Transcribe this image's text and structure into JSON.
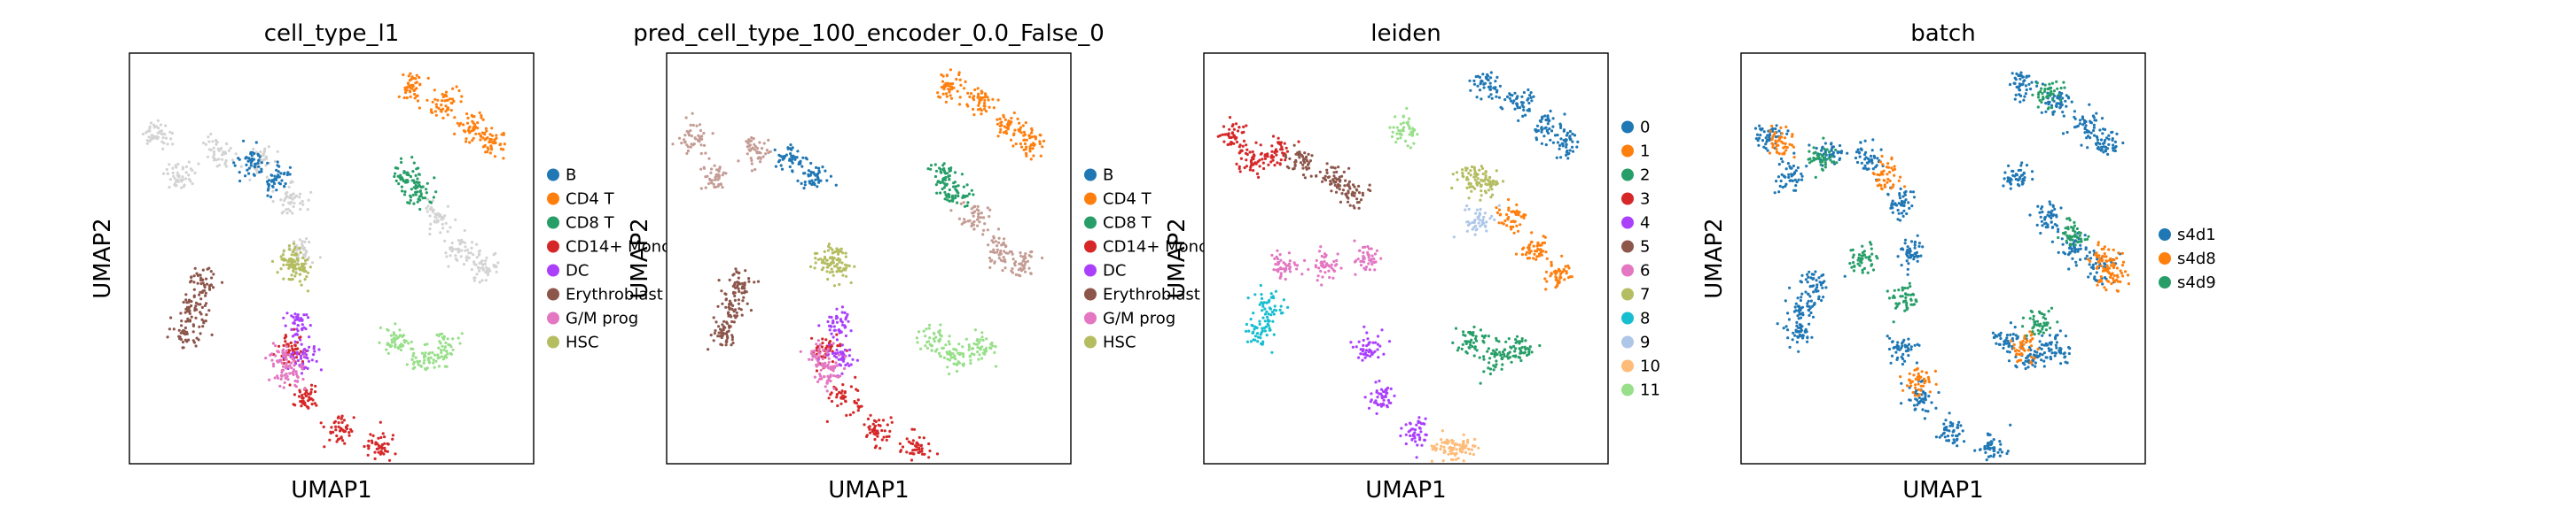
{
  "figure": {
    "background": "#ffffff"
  },
  "chart_data": [
    {
      "type": "scatter",
      "title": "cell_type_l1",
      "xlabel": "UMAP1",
      "ylabel": "UMAP2",
      "grid": false,
      "ticks": false,
      "legend": {
        "placement": "right",
        "entries": [
          {
            "label": "B",
            "color": "#1f77b4"
          },
          {
            "label": "CD4 T",
            "color": "#ff7f0e"
          },
          {
            "label": "CD8 T",
            "color": "#279e68"
          },
          {
            "label": "CD14+ Mono",
            "color": "#d62728"
          },
          {
            "label": "DC",
            "color": "#aa40fc"
          },
          {
            "label": "Erythroblast",
            "color": "#8c564b"
          },
          {
            "label": "G/M prog",
            "color": "#e377c2"
          },
          {
            "label": "HSC",
            "color": "#b5bd61"
          }
        ]
      },
      "unlabeled_color": "#d3d3d3",
      "clusters": [
        {
          "color": "#ff7f0e",
          "points": [
            [
              0.7,
              0.08
            ],
            [
              0.78,
              0.12
            ],
            [
              0.85,
              0.18
            ],
            [
              0.9,
              0.22
            ]
          ]
        },
        {
          "color": "#d3d3d3",
          "points": [
            [
              0.07,
              0.2
            ],
            [
              0.12,
              0.3
            ],
            [
              0.22,
              0.24
            ],
            [
              0.32,
              0.26
            ],
            [
              0.4,
              0.36
            ],
            [
              0.42,
              0.48
            ],
            [
              0.76,
              0.4
            ],
            [
              0.82,
              0.48
            ],
            [
              0.88,
              0.52
            ]
          ]
        },
        {
          "color": "#1f77b4",
          "points": [
            [
              0.3,
              0.26
            ],
            [
              0.36,
              0.3
            ]
          ]
        },
        {
          "color": "#279e68",
          "points": [
            [
              0.68,
              0.3
            ],
            [
              0.72,
              0.34
            ]
          ]
        },
        {
          "color": "#d62728",
          "points": [
            [
              0.4,
              0.72
            ],
            [
              0.44,
              0.84
            ],
            [
              0.52,
              0.92
            ],
            [
              0.62,
              0.96
            ]
          ]
        },
        {
          "color": "#aa40fc",
          "points": [
            [
              0.42,
              0.66
            ],
            [
              0.43,
              0.74
            ]
          ]
        },
        {
          "color": "#e377c2",
          "points": [
            [
              0.38,
              0.74
            ],
            [
              0.4,
              0.78
            ]
          ]
        },
        {
          "color": "#8c564b",
          "points": [
            [
              0.18,
              0.56
            ],
            [
              0.16,
              0.62
            ],
            [
              0.14,
              0.68
            ]
          ]
        },
        {
          "color": "#b5bd61",
          "points": [
            [
              0.4,
              0.5
            ],
            [
              0.42,
              0.52
            ]
          ]
        },
        {
          "color": "#98df8a",
          "points": [
            [
              0.66,
              0.7
            ],
            [
              0.72,
              0.74
            ],
            [
              0.78,
              0.72
            ]
          ]
        }
      ]
    },
    {
      "type": "scatter",
      "title": "pred_cell_type_100_encoder_0.0_False_0",
      "xlabel": "UMAP1",
      "ylabel": "UMAP2",
      "grid": false,
      "ticks": false,
      "legend": {
        "placement": "right",
        "entries": [
          {
            "label": "B",
            "color": "#1f77b4"
          },
          {
            "label": "CD4 T",
            "color": "#ff7f0e"
          },
          {
            "label": "CD8 T",
            "color": "#279e68"
          },
          {
            "label": "CD14+ Mono",
            "color": "#d62728"
          },
          {
            "label": "DC",
            "color": "#aa40fc"
          },
          {
            "label": "Erythroblast",
            "color": "#8c564b"
          },
          {
            "label": "G/M prog",
            "color": "#e377c2"
          },
          {
            "label": "HSC",
            "color": "#b5bd61"
          }
        ]
      },
      "clusters": [
        {
          "color": "#ff7f0e",
          "points": [
            [
              0.7,
              0.08
            ],
            [
              0.78,
              0.12
            ],
            [
              0.85,
              0.18
            ],
            [
              0.9,
              0.22
            ]
          ]
        },
        {
          "color": "#c49c94",
          "points": [
            [
              0.07,
              0.2
            ],
            [
              0.12,
              0.3
            ],
            [
              0.22,
              0.24
            ],
            [
              0.76,
              0.4
            ],
            [
              0.82,
              0.48
            ],
            [
              0.88,
              0.52
            ]
          ]
        },
        {
          "color": "#1f77b4",
          "points": [
            [
              0.3,
              0.26
            ],
            [
              0.36,
              0.3
            ]
          ]
        },
        {
          "color": "#279e68",
          "points": [
            [
              0.68,
              0.3
            ],
            [
              0.72,
              0.34
            ]
          ]
        },
        {
          "color": "#d62728",
          "points": [
            [
              0.4,
              0.72
            ],
            [
              0.44,
              0.84
            ],
            [
              0.52,
              0.92
            ],
            [
              0.62,
              0.96
            ]
          ]
        },
        {
          "color": "#aa40fc",
          "points": [
            [
              0.42,
              0.66
            ],
            [
              0.43,
              0.74
            ]
          ]
        },
        {
          "color": "#e377c2",
          "points": [
            [
              0.38,
              0.74
            ],
            [
              0.4,
              0.78
            ]
          ]
        },
        {
          "color": "#8c564b",
          "points": [
            [
              0.18,
              0.56
            ],
            [
              0.16,
              0.62
            ],
            [
              0.14,
              0.68
            ]
          ]
        },
        {
          "color": "#b5bd61",
          "points": [
            [
              0.4,
              0.5
            ],
            [
              0.42,
              0.52
            ]
          ]
        },
        {
          "color": "#98df8a",
          "points": [
            [
              0.66,
              0.7
            ],
            [
              0.72,
              0.74
            ],
            [
              0.78,
              0.72
            ]
          ]
        }
      ]
    },
    {
      "type": "scatter",
      "title": "leiden",
      "xlabel": "UMAP1",
      "ylabel": "UMAP2",
      "grid": false,
      "ticks": false,
      "legend": {
        "placement": "right",
        "entries": [
          {
            "label": "0",
            "color": "#1f77b4"
          },
          {
            "label": "1",
            "color": "#ff7f0e"
          },
          {
            "label": "2",
            "color": "#279e68"
          },
          {
            "label": "3",
            "color": "#d62728"
          },
          {
            "label": "4",
            "color": "#aa40fc"
          },
          {
            "label": "5",
            "color": "#8c564b"
          },
          {
            "label": "6",
            "color": "#e377c2"
          },
          {
            "label": "7",
            "color": "#b5bd61"
          },
          {
            "label": "8",
            "color": "#17becf"
          },
          {
            "label": "9",
            "color": "#aec7e8"
          },
          {
            "label": "10",
            "color": "#ffbb78"
          },
          {
            "label": "11",
            "color": "#98df8a"
          }
        ]
      },
      "clusters": [
        {
          "color": "#1f77b4",
          "points": [
            [
              0.7,
              0.08
            ],
            [
              0.78,
              0.12
            ],
            [
              0.85,
              0.18
            ],
            [
              0.9,
              0.22
            ]
          ]
        },
        {
          "color": "#d62728",
          "points": [
            [
              0.07,
              0.2
            ],
            [
              0.12,
              0.26
            ],
            [
              0.18,
              0.24
            ]
          ]
        },
        {
          "color": "#8c564b",
          "points": [
            [
              0.24,
              0.26
            ],
            [
              0.32,
              0.3
            ],
            [
              0.36,
              0.34
            ]
          ]
        },
        {
          "color": "#b5bd61",
          "points": [
            [
              0.66,
              0.3
            ],
            [
              0.7,
              0.32
            ]
          ]
        },
        {
          "color": "#ff7f0e",
          "points": [
            [
              0.76,
              0.4
            ],
            [
              0.82,
              0.48
            ],
            [
              0.88,
              0.54
            ]
          ]
        },
        {
          "color": "#aec7e8",
          "points": [
            [
              0.68,
              0.41
            ]
          ]
        },
        {
          "color": "#e377c2",
          "points": [
            [
              0.2,
              0.52
            ],
            [
              0.3,
              0.52
            ],
            [
              0.4,
              0.5
            ]
          ]
        },
        {
          "color": "#17becf",
          "points": [
            [
              0.16,
              0.62
            ],
            [
              0.14,
              0.68
            ]
          ]
        },
        {
          "color": "#279e68",
          "points": [
            [
              0.66,
              0.7
            ],
            [
              0.72,
              0.74
            ],
            [
              0.78,
              0.72
            ]
          ]
        },
        {
          "color": "#aa40fc",
          "points": [
            [
              0.4,
              0.72
            ],
            [
              0.44,
              0.84
            ],
            [
              0.52,
              0.92
            ]
          ]
        },
        {
          "color": "#ffbb78",
          "points": [
            [
              0.6,
              0.96
            ],
            [
              0.64,
              0.97
            ]
          ]
        },
        {
          "color": "#98df8a",
          "points": [
            [
              0.5,
              0.19
            ]
          ]
        }
      ]
    },
    {
      "type": "scatter",
      "title": "batch",
      "xlabel": "UMAP1",
      "ylabel": "UMAP2",
      "grid": false,
      "ticks": false,
      "legend": {
        "placement": "right",
        "entries": [
          {
            "label": "s4d1",
            "color": "#1f77b4"
          },
          {
            "label": "s4d8",
            "color": "#ff7f0e"
          },
          {
            "label": "s4d9",
            "color": "#279e68"
          }
        ]
      },
      "clusters": [
        {
          "color": "#1f77b4",
          "points": [
            [
              0.7,
              0.08
            ],
            [
              0.78,
              0.12
            ],
            [
              0.85,
              0.18
            ],
            [
              0.9,
              0.22
            ],
            [
              0.07,
              0.2
            ],
            [
              0.12,
              0.3
            ],
            [
              0.22,
              0.24
            ],
            [
              0.32,
              0.26
            ],
            [
              0.4,
              0.36
            ],
            [
              0.42,
              0.48
            ],
            [
              0.68,
              0.3
            ],
            [
              0.76,
              0.4
            ],
            [
              0.82,
              0.48
            ],
            [
              0.88,
              0.52
            ],
            [
              0.4,
              0.72
            ],
            [
              0.44,
              0.84
            ],
            [
              0.52,
              0.92
            ],
            [
              0.62,
              0.96
            ],
            [
              0.18,
              0.56
            ],
            [
              0.16,
              0.62
            ],
            [
              0.14,
              0.68
            ],
            [
              0.66,
              0.7
            ],
            [
              0.72,
              0.74
            ],
            [
              0.78,
              0.72
            ]
          ]
        },
        {
          "color": "#ff7f0e",
          "points": [
            [
              0.9,
              0.5
            ],
            [
              0.92,
              0.54
            ],
            [
              0.7,
              0.72
            ],
            [
              0.44,
              0.8
            ],
            [
              0.1,
              0.22
            ],
            [
              0.36,
              0.3
            ]
          ]
        },
        {
          "color": "#279e68",
          "points": [
            [
              0.76,
              0.1
            ],
            [
              0.2,
              0.26
            ],
            [
              0.3,
              0.5
            ],
            [
              0.74,
              0.66
            ],
            [
              0.4,
              0.6
            ],
            [
              0.82,
              0.44
            ]
          ]
        }
      ]
    }
  ]
}
